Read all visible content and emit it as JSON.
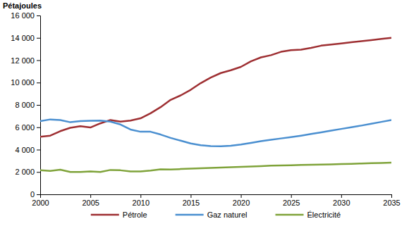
{
  "chart_data": {
    "type": "line",
    "y_label": "Pétajoules",
    "x": [
      2000,
      2001,
      2002,
      2003,
      2004,
      2005,
      2006,
      2007,
      2008,
      2009,
      2010,
      2011,
      2012,
      2013,
      2014,
      2015,
      2016,
      2017,
      2018,
      2019,
      2020,
      2021,
      2022,
      2023,
      2024,
      2025,
      2026,
      2027,
      2028,
      2029,
      2030,
      2031,
      2032,
      2033,
      2034,
      2035
    ],
    "series": [
      {
        "name": "Pétrole",
        "color": "#9e2f32",
        "values": [
          5150,
          5250,
          5650,
          5950,
          6100,
          5980,
          6350,
          6650,
          6500,
          6600,
          6800,
          7250,
          7800,
          8450,
          8850,
          9350,
          9950,
          10450,
          10850,
          11100,
          11400,
          11900,
          12250,
          12450,
          12750,
          12900,
          12950,
          13100,
          13300,
          13400,
          13500,
          13600,
          13700,
          13800,
          13900,
          14000
        ]
      },
      {
        "name": "Gaz naturel",
        "color": "#4a8fd0",
        "values": [
          6550,
          6700,
          6650,
          6450,
          6550,
          6580,
          6600,
          6500,
          6250,
          5800,
          5600,
          5600,
          5350,
          5050,
          4800,
          4550,
          4400,
          4320,
          4300,
          4350,
          4450,
          4600,
          4750,
          4880,
          5000,
          5120,
          5250,
          5400,
          5550,
          5700,
          5850,
          6000,
          6150,
          6320,
          6480,
          6650
        ]
      },
      {
        "name": "Électricité",
        "color": "#7fa33a",
        "values": [
          2150,
          2100,
          2200,
          2000,
          2000,
          2050,
          2000,
          2180,
          2150,
          2050,
          2050,
          2120,
          2230,
          2220,
          2260,
          2300,
          2330,
          2360,
          2400,
          2430,
          2460,
          2490,
          2520,
          2560,
          2580,
          2600,
          2630,
          2650,
          2660,
          2680,
          2710,
          2730,
          2760,
          2780,
          2800,
          2830
        ]
      }
    ],
    "xlim": [
      2000,
      2035
    ],
    "xticks": [
      2000,
      2005,
      2010,
      2015,
      2020,
      2025,
      2030,
      2035
    ],
    "ylim": [
      0,
      16000
    ],
    "yticks": [
      0,
      {
        "value": 2000,
        "label": "2 000"
      },
      {
        "value": 4000,
        "label": "4 000"
      },
      {
        "value": 6000,
        "label": "6 000"
      },
      {
        "value": 8000,
        "label": "8 000"
      },
      {
        "value": 10000,
        "label": "10 000"
      },
      {
        "value": 12000,
        "label": "12 000"
      },
      {
        "value": 14000,
        "label": "14 000"
      },
      {
        "value": 16000,
        "label": "16 000"
      }
    ],
    "grid": false,
    "legend": "bottom"
  }
}
